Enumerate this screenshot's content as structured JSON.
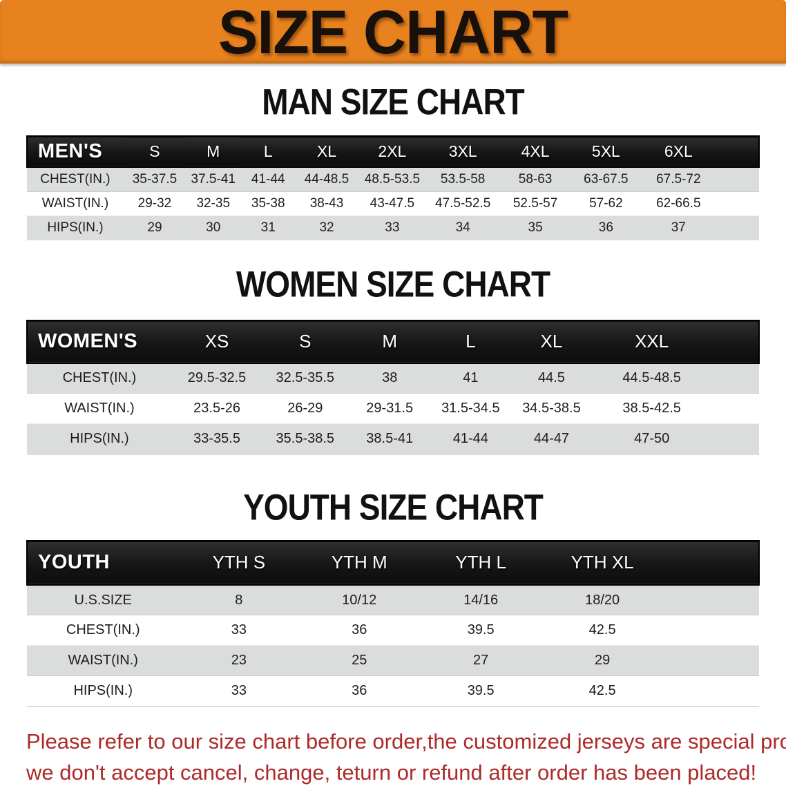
{
  "banner": {
    "title": "SIZE CHART"
  },
  "sections": [
    {
      "title": "MAN SIZE CHART",
      "header_label": "MEN'S",
      "columns": [
        "S",
        "M",
        "L",
        "XL",
        "2XL",
        "3XL",
        "4XL",
        "5XL",
        "6XL"
      ],
      "rows": [
        {
          "label": "CHEST(IN.)",
          "values": [
            "35-37.5",
            "37.5-41",
            "41-44",
            "44-48.5",
            "48.5-53.5",
            "53.5-58",
            "58-63",
            "63-67.5",
            "67.5-72"
          ]
        },
        {
          "label": "WAIST(IN.)",
          "values": [
            "29-32",
            "32-35",
            "35-38",
            "38-43",
            "43-47.5",
            "47.5-52.5",
            "52.5-57",
            "57-62",
            "62-66.5"
          ]
        },
        {
          "label": "HIPS(IN.)",
          "values": [
            "29",
            "30",
            "31",
            "32",
            "33",
            "34",
            "35",
            "36",
            "37"
          ]
        }
      ]
    },
    {
      "title": "WOMEN SIZE CHART",
      "header_label": "WOMEN'S",
      "columns": [
        "XS",
        "S",
        "M",
        "L",
        "XL",
        "XXL"
      ],
      "rows": [
        {
          "label": "CHEST(IN.)",
          "values": [
            "29.5-32.5",
            "32.5-35.5",
            "38",
            "41",
            "44.5",
            "44.5-48.5"
          ]
        },
        {
          "label": "WAIST(IN.)",
          "values": [
            "23.5-26",
            "26-29",
            "29-31.5",
            "31.5-34.5",
            "34.5-38.5",
            "38.5-42.5"
          ]
        },
        {
          "label": "HIPS(IN.)",
          "values": [
            "33-35.5",
            "35.5-38.5",
            "38.5-41",
            "41-44",
            "44-47",
            "47-50"
          ]
        }
      ]
    },
    {
      "title": "YOUTH SIZE CHART",
      "header_label": "YOUTH",
      "columns": [
        "YTH S",
        "YTH M",
        "YTH L",
        "YTH XL"
      ],
      "rows": [
        {
          "label": "U.S.SIZE",
          "values": [
            "8",
            "10/12",
            "14/16",
            "18/20"
          ]
        },
        {
          "label": "CHEST(IN.)",
          "values": [
            "33",
            "36",
            "39.5",
            "42.5"
          ]
        },
        {
          "label": "WAIST(IN.)",
          "values": [
            "23",
            "25",
            "27",
            "29"
          ]
        },
        {
          "label": "HIPS(IN.)",
          "values": [
            "33",
            "36",
            "39.5",
            "42.5"
          ]
        }
      ]
    }
  ],
  "footer": {
    "line1": "Please refer to our size chart before order,the customized jerseys are special products,",
    "line2": "we don't accept cancel, change, teturn or refund after order has been placed!"
  },
  "colors": {
    "banner_bg": "#e8821e",
    "banner_text": "#18100a",
    "header_bar_bg": "#191919",
    "header_bar_text": "#ffffff",
    "row_shade": "#dbdcdc",
    "disclaimer_text": "#ac2a28",
    "title_text": "#111111",
    "page_bg": "#ffffff"
  }
}
